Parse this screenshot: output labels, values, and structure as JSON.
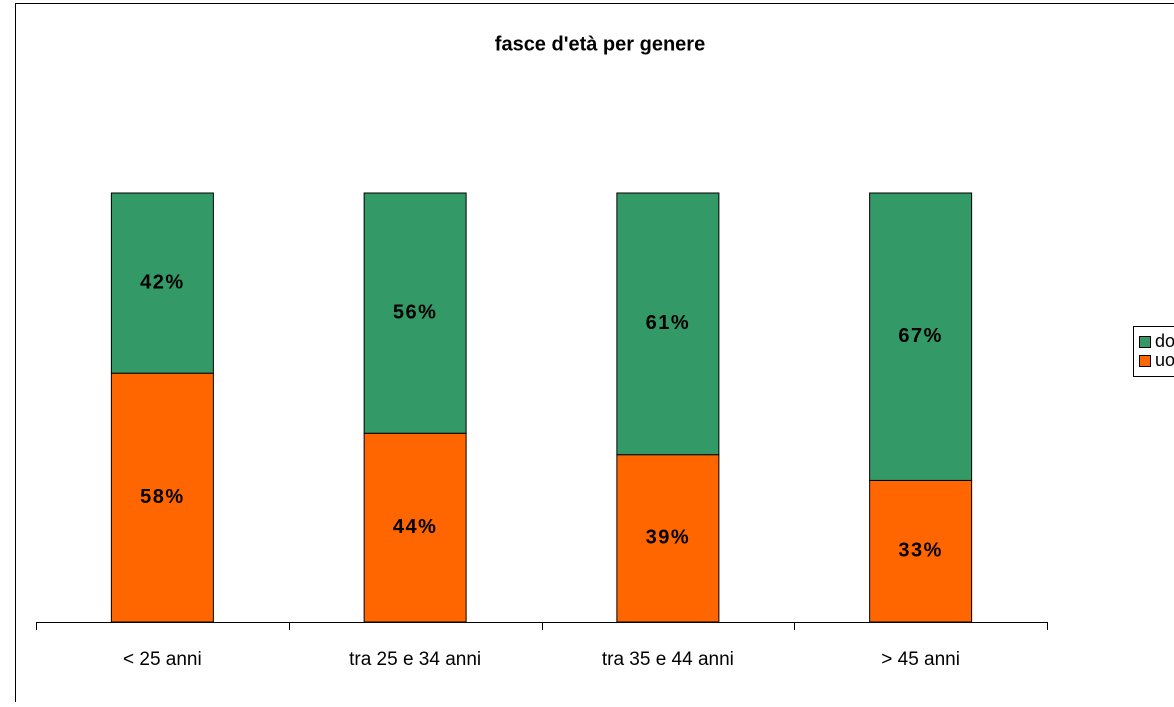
{
  "chart_data": {
    "type": "stacked_bar",
    "title": "fasce d'età per genere",
    "categories": [
      "< 25 anni",
      "tra 25 e 34 anni",
      "tra 35 e 44 anni",
      "> 45 anni"
    ],
    "series": [
      {
        "name": "uomini",
        "color": "#ff6600",
        "values": [
          58,
          44,
          39,
          33
        ],
        "value_labels": [
          "58%",
          "44%",
          "39%",
          "33%"
        ]
      },
      {
        "name": "donne",
        "color": "#339966",
        "values": [
          42,
          56,
          61,
          67
        ],
        "value_labels": [
          "42%",
          "56%",
          "61%",
          "67%"
        ]
      }
    ],
    "ylim": [
      0,
      100
    ],
    "legend": "right"
  }
}
